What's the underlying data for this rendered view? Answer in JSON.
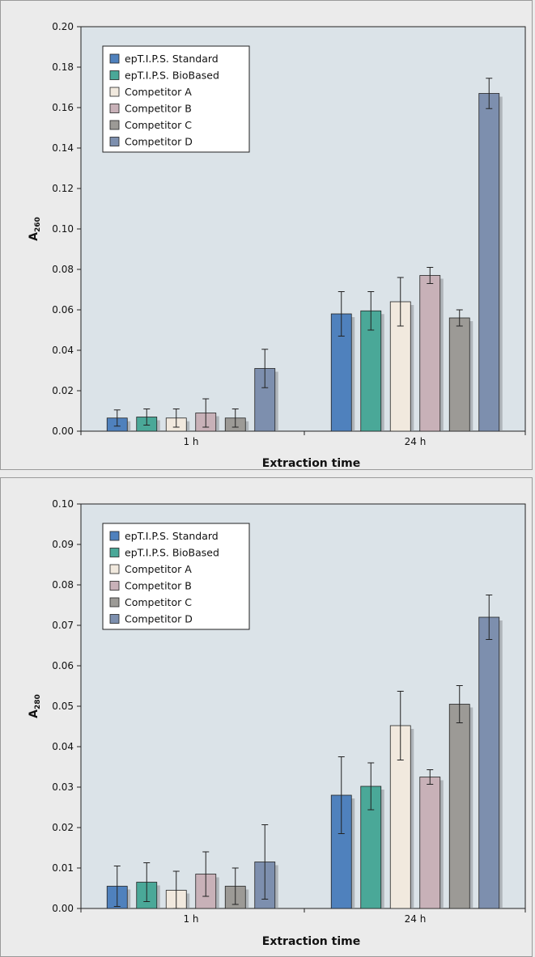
{
  "chart_data": [
    {
      "type": "bar",
      "ylabel_main": "A",
      "ylabel_sub": "260",
      "xlabel": "Extraction time",
      "categories": [
        "1 h",
        "24 h"
      ],
      "ylim": [
        0,
        0.2
      ],
      "yticks": [
        "0.00",
        "0.02",
        "0.04",
        "0.06",
        "0.08",
        "0.10",
        "0.12",
        "0.14",
        "0.16",
        "0.18",
        "0.20"
      ],
      "grid": false,
      "legend_position": "top-left",
      "series": [
        {
          "name": "epT.I.P.S. Standard",
          "color": "#4f81bd",
          "values": [
            0.0065,
            0.058
          ],
          "errors": [
            0.004,
            0.011
          ]
        },
        {
          "name": "epT.I.P.S. BioBased",
          "color": "#4aa898",
          "values": [
            0.007,
            0.0595
          ],
          "errors": [
            0.004,
            0.0095
          ]
        },
        {
          "name": "Competitor A",
          "color": "#f1e9de",
          "values": [
            0.0065,
            0.064
          ],
          "errors": [
            0.0045,
            0.012
          ]
        },
        {
          "name": "Competitor B",
          "color": "#c8b1b8",
          "values": [
            0.009,
            0.077
          ],
          "errors": [
            0.007,
            0.004
          ]
        },
        {
          "name": "Competitor C",
          "color": "#9c9a96",
          "values": [
            0.0065,
            0.056
          ],
          "errors": [
            0.0045,
            0.004
          ]
        },
        {
          "name": "Competitor D",
          "color": "#7d8fae",
          "values": [
            0.031,
            0.167
          ],
          "errors": [
            0.0095,
            0.0075
          ]
        }
      ]
    },
    {
      "type": "bar",
      "ylabel_main": "A",
      "ylabel_sub": "280",
      "xlabel": "Extraction time",
      "categories": [
        "1 h",
        "24 h"
      ],
      "ylim": [
        0,
        0.1
      ],
      "yticks": [
        "0.00",
        "0.01",
        "0.02",
        "0.03",
        "0.04",
        "0.05",
        "0.06",
        "0.07",
        "0.08",
        "0.09",
        "0.10"
      ],
      "grid": false,
      "legend_position": "top-left",
      "series": [
        {
          "name": "epT.I.P.S. Standard",
          "color": "#4f81bd",
          "values": [
            0.0055,
            0.028
          ],
          "errors": [
            0.005,
            0.0095
          ]
        },
        {
          "name": "epT.I.P.S. BioBased",
          "color": "#4aa898",
          "values": [
            0.0065,
            0.0302
          ],
          "errors": [
            0.0048,
            0.0058
          ]
        },
        {
          "name": "Competitor A",
          "color": "#f1e9de",
          "values": [
            0.0045,
            0.0452
          ],
          "errors": [
            0.0047,
            0.0085
          ]
        },
        {
          "name": "Competitor B",
          "color": "#c8b1b8",
          "values": [
            0.0085,
            0.0325
          ],
          "errors": [
            0.0055,
            0.0018
          ]
        },
        {
          "name": "Competitor C",
          "color": "#9c9a96",
          "values": [
            0.0055,
            0.0505
          ],
          "errors": [
            0.0045,
            0.0046
          ]
        },
        {
          "name": "Competitor D",
          "color": "#7d8fae",
          "values": [
            0.0115,
            0.072
          ],
          "errors": [
            0.0092,
            0.0055
          ]
        }
      ]
    }
  ]
}
